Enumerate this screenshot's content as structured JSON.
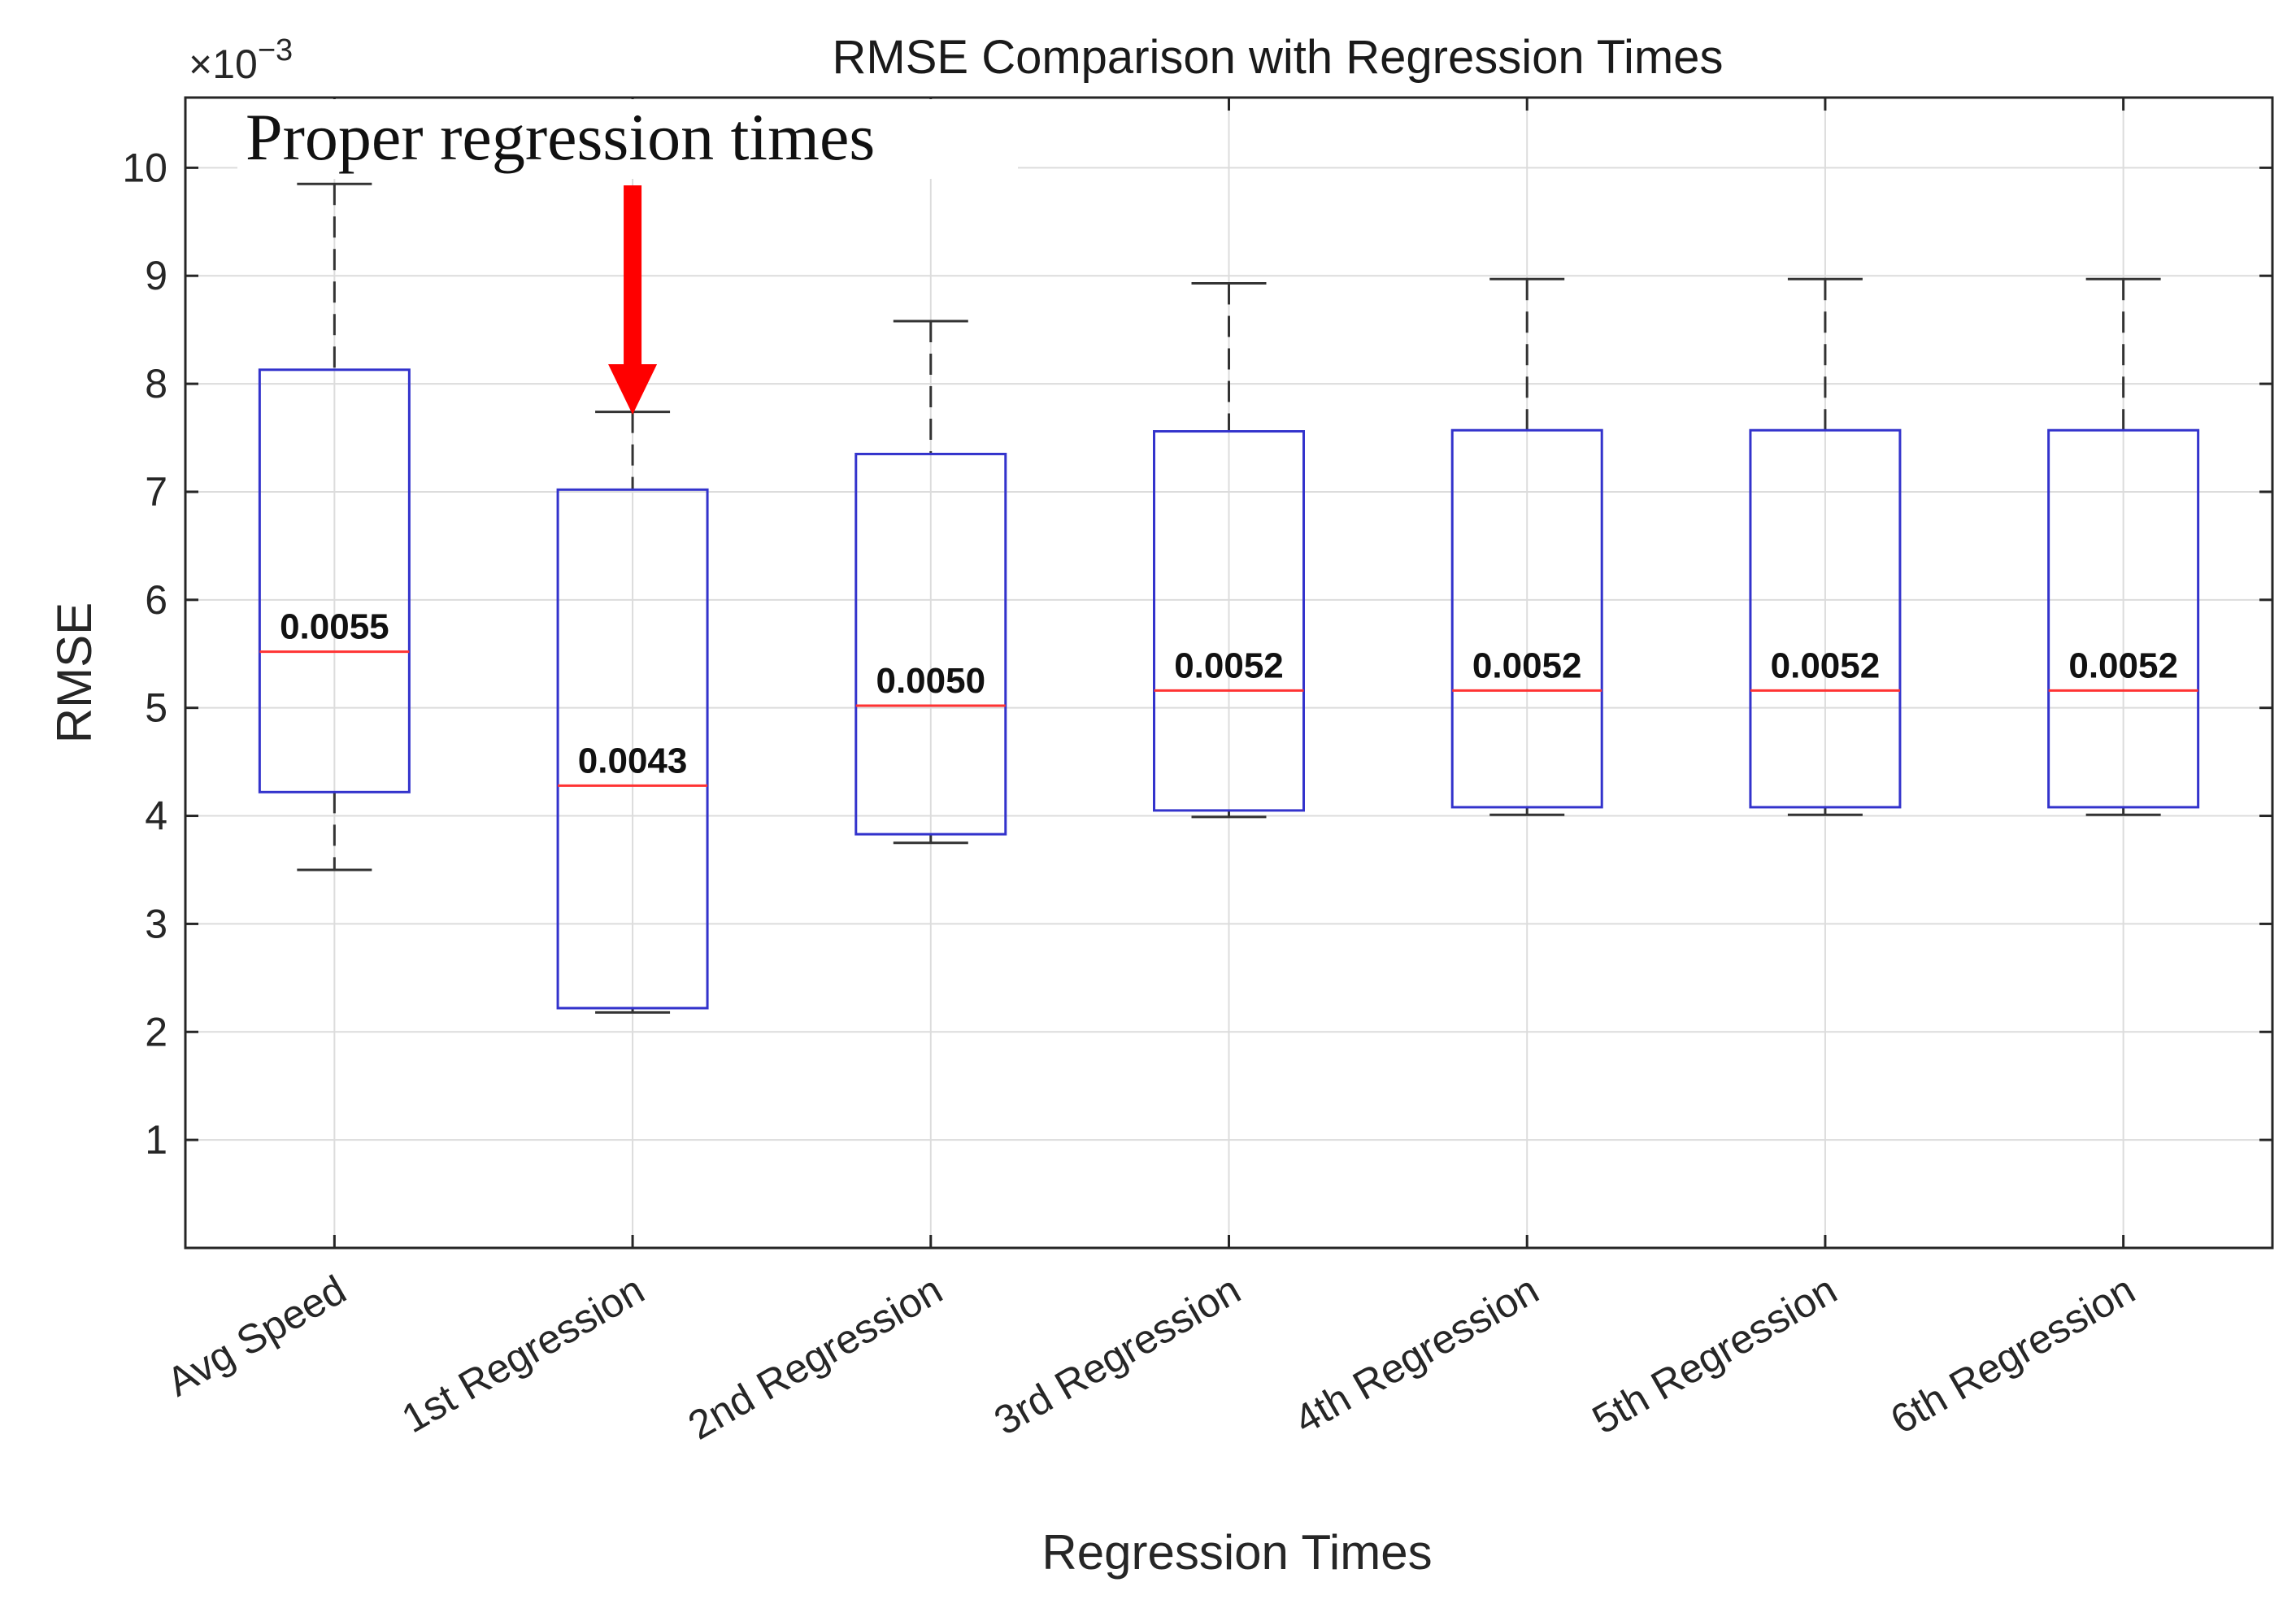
{
  "chart_data": {
    "type": "box",
    "title": "RMSE Comparison with Regression Times",
    "xlabel": "Regression Times",
    "ylabel": "RMSE",
    "y_multiplier_label": "×10",
    "y_multiplier_exponent": "−3",
    "ylim": [
      0,
      10.65
    ],
    "yticks": [
      1,
      2,
      3,
      4,
      5,
      6,
      7,
      8,
      9,
      10
    ],
    "grid": true,
    "categories": [
      "Avg Speed",
      "1st Regression",
      "2nd Regression",
      "3rd Regression",
      "4th Regression",
      "5th Regression",
      "6th Regression"
    ],
    "boxes": [
      {
        "category": "Avg Speed",
        "whisker_low": 3.5,
        "q1": 4.22,
        "median": 5.52,
        "q3": 8.13,
        "whisker_high": 9.85,
        "median_label": "0.0055"
      },
      {
        "category": "1st Regression",
        "whisker_low": 2.18,
        "q1": 2.22,
        "median": 4.28,
        "q3": 7.02,
        "whisker_high": 7.74,
        "median_label": "0.0043"
      },
      {
        "category": "2nd Regression",
        "whisker_low": 3.75,
        "q1": 3.83,
        "median": 5.02,
        "q3": 7.35,
        "whisker_high": 8.58,
        "median_label": "0.0050"
      },
      {
        "category": "3rd Regression",
        "whisker_low": 3.99,
        "q1": 4.05,
        "median": 5.16,
        "q3": 7.56,
        "whisker_high": 8.93,
        "median_label": "0.0052"
      },
      {
        "category": "4th Regression",
        "whisker_low": 4.01,
        "q1": 4.08,
        "median": 5.16,
        "q3": 7.57,
        "whisker_high": 8.97,
        "median_label": "0.0052"
      },
      {
        "category": "5th Regression",
        "whisker_low": 4.01,
        "q1": 4.08,
        "median": 5.16,
        "q3": 7.57,
        "whisker_high": 8.97,
        "median_label": "0.0052"
      },
      {
        "category": "6th Regression",
        "whisker_low": 4.01,
        "q1": 4.08,
        "median": 5.16,
        "q3": 7.57,
        "whisker_high": 8.97,
        "median_label": "0.0052"
      }
    ],
    "annotation": {
      "text": "Proper regression times",
      "target_category": "1st Regression",
      "arrow_tip_value": 7.85,
      "arrow_color": "#ff0000"
    },
    "colors": {
      "box": "#3333cc",
      "median": "#ff3333",
      "whisker": "#333333",
      "grid": "#dcdcdc",
      "axes": "#262626"
    }
  }
}
